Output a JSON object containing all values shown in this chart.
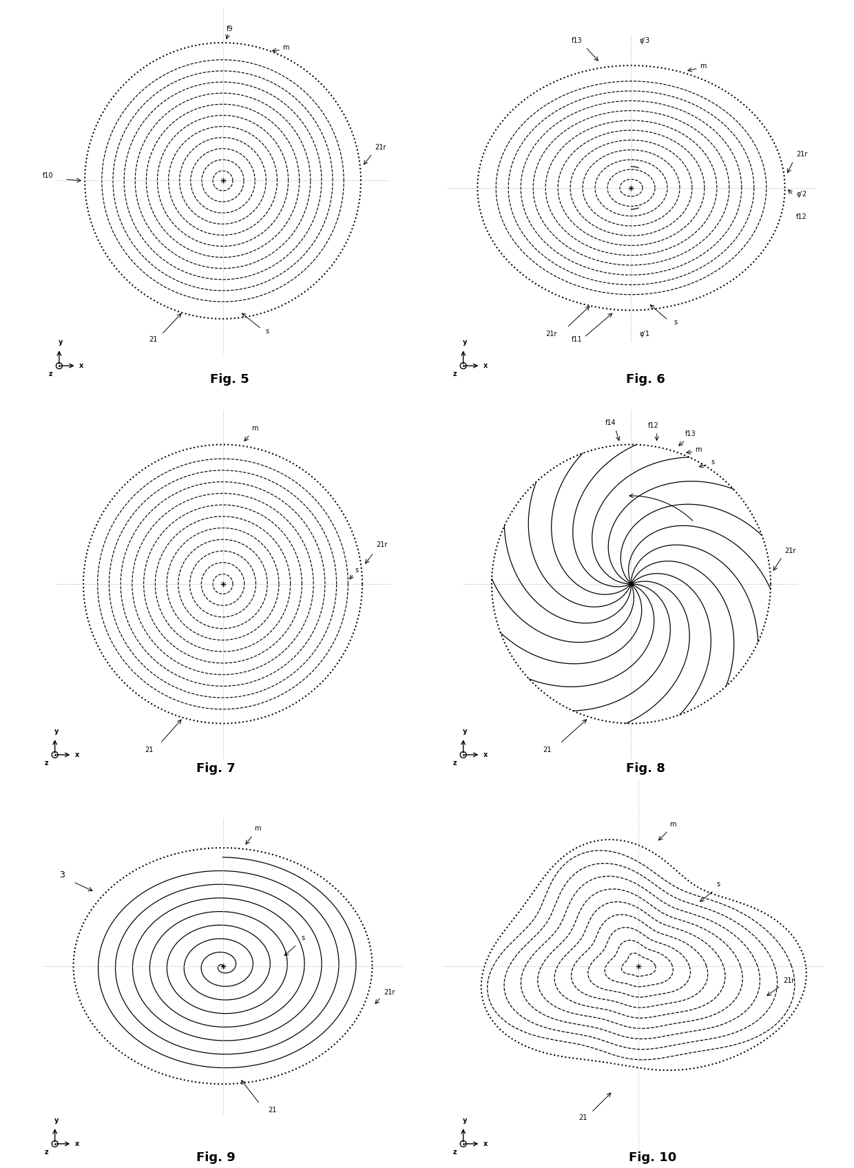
{
  "fig_layout": {
    "nrows": 3,
    "ncols": 2,
    "figsize": [
      12.4,
      16.96
    ],
    "dpi": 100,
    "bg_color": "#ffffff"
  },
  "fig_labels": [
    "Fig. 5",
    "Fig. 6",
    "Fig. 7",
    "Fig. 8",
    "Fig. 9",
    "Fig. 10"
  ],
  "line_color": "#000000",
  "dotted_color": "#000000",
  "dashed_color": "#555555",
  "n_circles_5": 11,
  "n_ellipses_6": 11,
  "n_circles_7": 11,
  "n_arms_8": 16
}
